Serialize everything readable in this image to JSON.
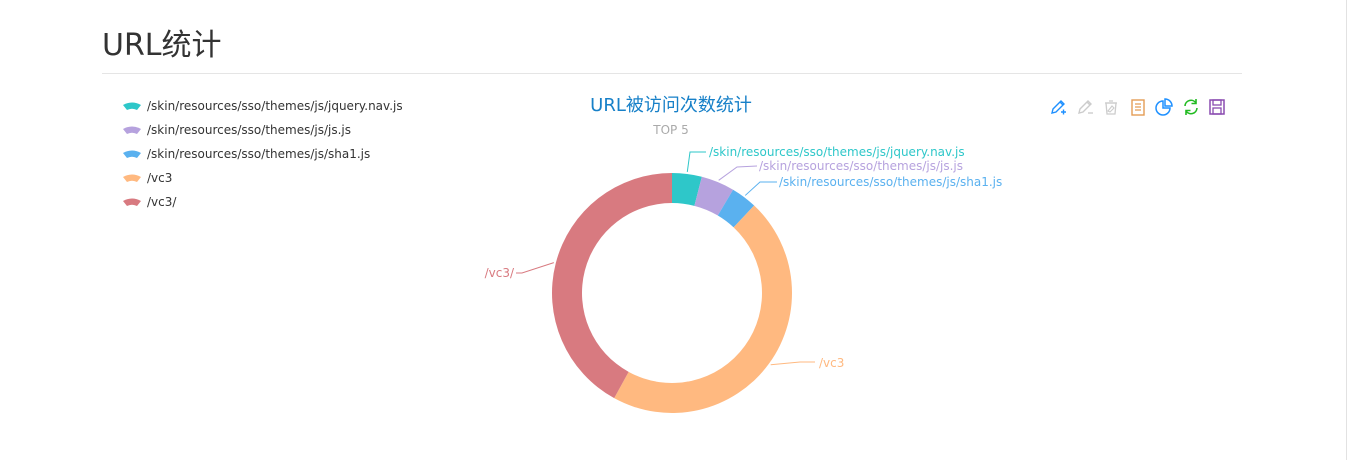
{
  "page": {
    "title": "URL统计"
  },
  "chart_data": {
    "type": "pie",
    "title": "URL被访问次数统计",
    "subtitle": "TOP 5",
    "legend_position": "left",
    "series": [
      {
        "name": "/skin/resources/sso/themes/js/jquery.nav.js",
        "value": 4,
        "color": "#2ec7c9"
      },
      {
        "name": "/skin/resources/sso/themes/js/js.js",
        "value": 4.5,
        "color": "#b6a2de"
      },
      {
        "name": "/skin/resources/sso/themes/js/sha1.js",
        "value": 3.5,
        "color": "#5ab1ef"
      },
      {
        "name": "/vc3",
        "value": 46,
        "color": "#ffb980"
      },
      {
        "name": "/vc3/",
        "value": 42,
        "color": "#d87a80"
      }
    ]
  },
  "toolbox": {
    "items": [
      {
        "name": "mark-icon",
        "color": "#1e90ff"
      },
      {
        "name": "mark-undo-icon",
        "color": "#cccccc"
      },
      {
        "name": "mark-clear-icon",
        "color": "#cccccc"
      },
      {
        "name": "data-view-icon",
        "color": "#e49c55"
      },
      {
        "name": "pie-restore-icon",
        "color": "#1e90ff"
      },
      {
        "name": "refresh-icon",
        "color": "#22bb22"
      },
      {
        "name": "save-image-icon",
        "color": "#8a4bb0"
      }
    ]
  }
}
